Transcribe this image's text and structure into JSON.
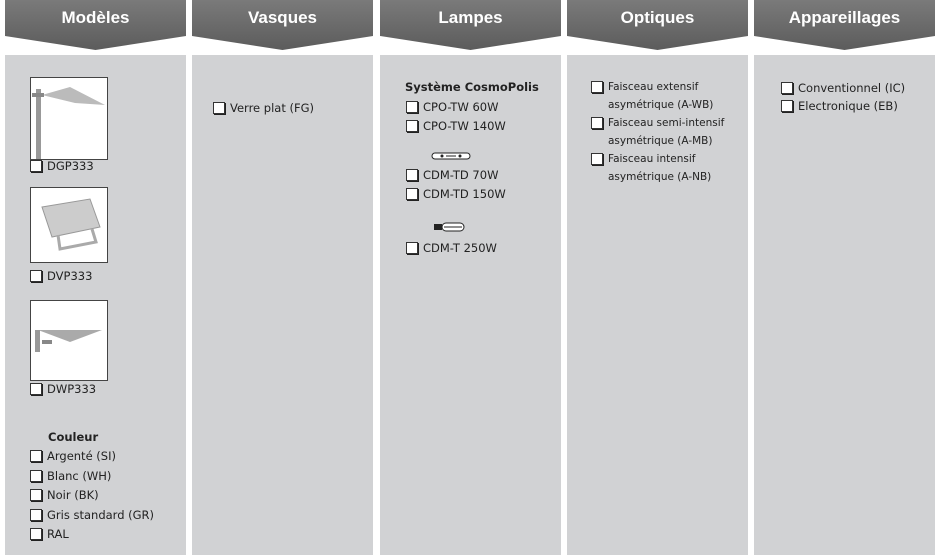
{
  "columns": [
    {
      "title": "Modèles",
      "models": [
        "DGP333",
        "DVP333",
        "DWP333"
      ],
      "color_heading": "Couleur",
      "colors": [
        "Argenté (SI)",
        "Blanc (WH)",
        "Noir (BK)",
        "Gris standard  (GR)",
        "RAL"
      ]
    },
    {
      "title": "Vasques",
      "items": [
        "Verre plat (FG)"
      ]
    },
    {
      "title": "Lampes",
      "group": "Système CosmoPolis",
      "items": [
        "CPO-TW 60W",
        "CPO-TW 140W",
        "CDM-TD 70W",
        "CDM-TD 150W",
        "CDM-T 250W"
      ]
    },
    {
      "title": "Optiques",
      "items": [
        "Faisceau extensif asymétrique (A-WB)",
        "Faisceau semi-intensif asymétrique (A-MB)",
        "Faisceau intensif asymétrique (A-NB)"
      ]
    },
    {
      "title": "Appareillages",
      "items": [
        "Conventionnel (IC)",
        "Electronique (EB)"
      ]
    }
  ]
}
